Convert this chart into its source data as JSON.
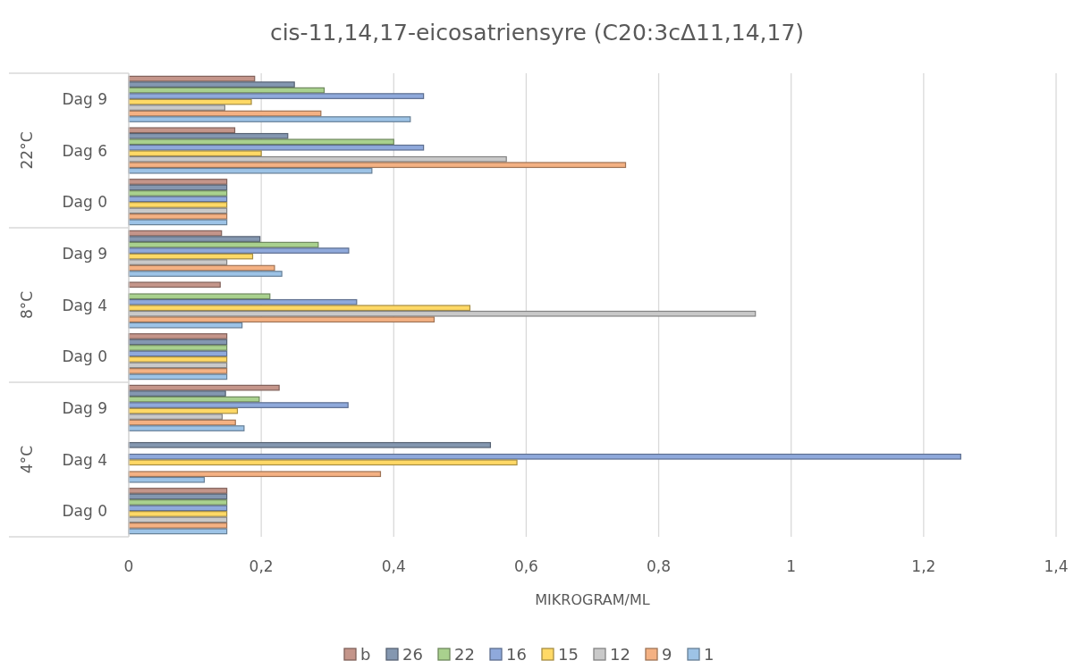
{
  "chart_data": {
    "type": "bar",
    "orientation": "horizontal",
    "title": "cis-11,14,17-eicosatriensyre (C20:3cΔ11,14,17)",
    "xlabel": "MIKROGRAM/ML",
    "categories": [
      "Dag 9",
      "Dag 6",
      "Dag 0",
      "Dag 9",
      "Dag 4",
      "Dag 0",
      "Dag 9",
      "Dag 4",
      "Dag 0"
    ],
    "annotations": [
      "22°C",
      "8°C",
      "4°C"
    ],
    "series": [
      {
        "name": "b",
        "color": "#c4958a",
        "values": [
          0.19,
          0.16,
          0.148,
          0.14,
          0.138,
          0.148,
          0.227,
          null,
          0.148
        ]
      },
      {
        "name": "26",
        "color": "#8497b0",
        "values": [
          0.25,
          0.24,
          0.148,
          0.198,
          null,
          0.148,
          0.146,
          0.546,
          0.148
        ]
      },
      {
        "name": "22",
        "color": "#a9d18e",
        "values": [
          0.295,
          0.4,
          0.148,
          0.286,
          0.213,
          0.148,
          0.197,
          null,
          0.148
        ]
      },
      {
        "name": "16",
        "color": "#8fa9db",
        "values": [
          0.445,
          0.445,
          0.148,
          0.332,
          0.344,
          0.148,
          0.331,
          1.256,
          0.148
        ]
      },
      {
        "name": "15",
        "color": "#ffd966",
        "values": [
          0.185,
          0.2,
          0.148,
          0.187,
          0.515,
          0.148,
          0.164,
          0.586,
          0.148
        ]
      },
      {
        "name": "12",
        "color": "#c9c9c9",
        "values": [
          0.145,
          0.57,
          0.148,
          0.148,
          0.946,
          0.148,
          0.141,
          null,
          0.148
        ]
      },
      {
        "name": "9",
        "color": "#f4b183",
        "values": [
          0.29,
          0.75,
          0.148,
          0.22,
          0.461,
          0.148,
          0.161,
          0.38,
          0.148
        ]
      },
      {
        "name": "1",
        "color": "#9dc3e6",
        "values": [
          0.425,
          0.367,
          0.148,
          0.231,
          0.171,
          0.148,
          0.174,
          0.114,
          0.148
        ]
      }
    ],
    "xlim": [
      0,
      1.4
    ],
    "xticks": [
      0,
      {
        "value": 0.2,
        "label": "0,2"
      },
      {
        "value": 0.4,
        "label": "0,4"
      },
      {
        "value": 0.6,
        "label": "0,6"
      },
      {
        "value": 0.8,
        "label": "0,8"
      },
      1,
      {
        "value": 1.2,
        "label": "1,2"
      },
      {
        "value": 1.4,
        "label": "1,4"
      }
    ],
    "grid": "x",
    "legend": "bottom"
  }
}
